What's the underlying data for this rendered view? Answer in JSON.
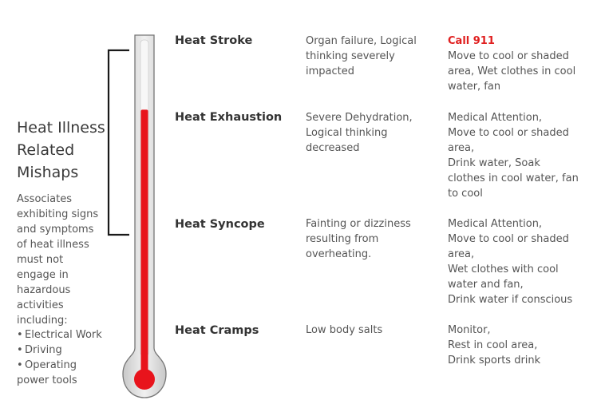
{
  "sidebar": {
    "title_lines": [
      "Heat Illness",
      "Related",
      "Mishaps"
    ],
    "description_lines": [
      "Associates",
      "exhibiting signs",
      "and symptoms",
      "of heat illness",
      "must not",
      "engage in",
      "hazardous",
      "activities",
      "including:"
    ],
    "bullets": [
      {
        "lines": [
          "Electrical Work"
        ]
      },
      {
        "lines": [
          "Driving"
        ]
      },
      {
        "lines": [
          "Operating",
          "power tools"
        ]
      }
    ]
  },
  "stages": [
    {
      "name": "Heat Stroke",
      "symptoms_lines": [
        "Organ failure, Logical",
        "thinking severely",
        "impacted"
      ],
      "action_highlight": "Call 911",
      "action_lines": [
        "Move to cool or shaded",
        "area, Wet clothes in cool",
        "water, fan"
      ]
    },
    {
      "name": "Heat Exhaustion",
      "symptoms_lines": [
        "Severe Dehydration,",
        "Logical thinking",
        "decreased"
      ],
      "action_highlight": "",
      "action_lines": [
        "Medical Attention,",
        "Move to cool or shaded",
        "area,",
        "Drink water, Soak",
        "clothes in cool water, fan",
        "to cool"
      ]
    },
    {
      "name": "Heat Syncope",
      "symptoms_lines": [
        "Fainting or dizziness",
        "resulting from",
        "overheating."
      ],
      "action_highlight": "",
      "action_lines": [
        "Medical Attention,",
        "Move to cool or shaded",
        "area,",
        "Wet clothes with cool",
        "water and fan,",
        "Drink water if conscious"
      ]
    },
    {
      "name": "Heat Cramps",
      "symptoms_lines": [
        "Low body salts"
      ],
      "action_highlight": "",
      "action_lines": [
        "Monitor,",
        "Rest in cool area,",
        "Drink sports drink"
      ]
    }
  ],
  "colors": {
    "mercury": "#e8141c",
    "call_highlight": "#e02020",
    "bracket": "#1a1a1a"
  },
  "icons": {
    "thermometer": "thermometer-icon",
    "bracket": "bracket-icon"
  },
  "thermometer_fill_fraction": 0.79
}
